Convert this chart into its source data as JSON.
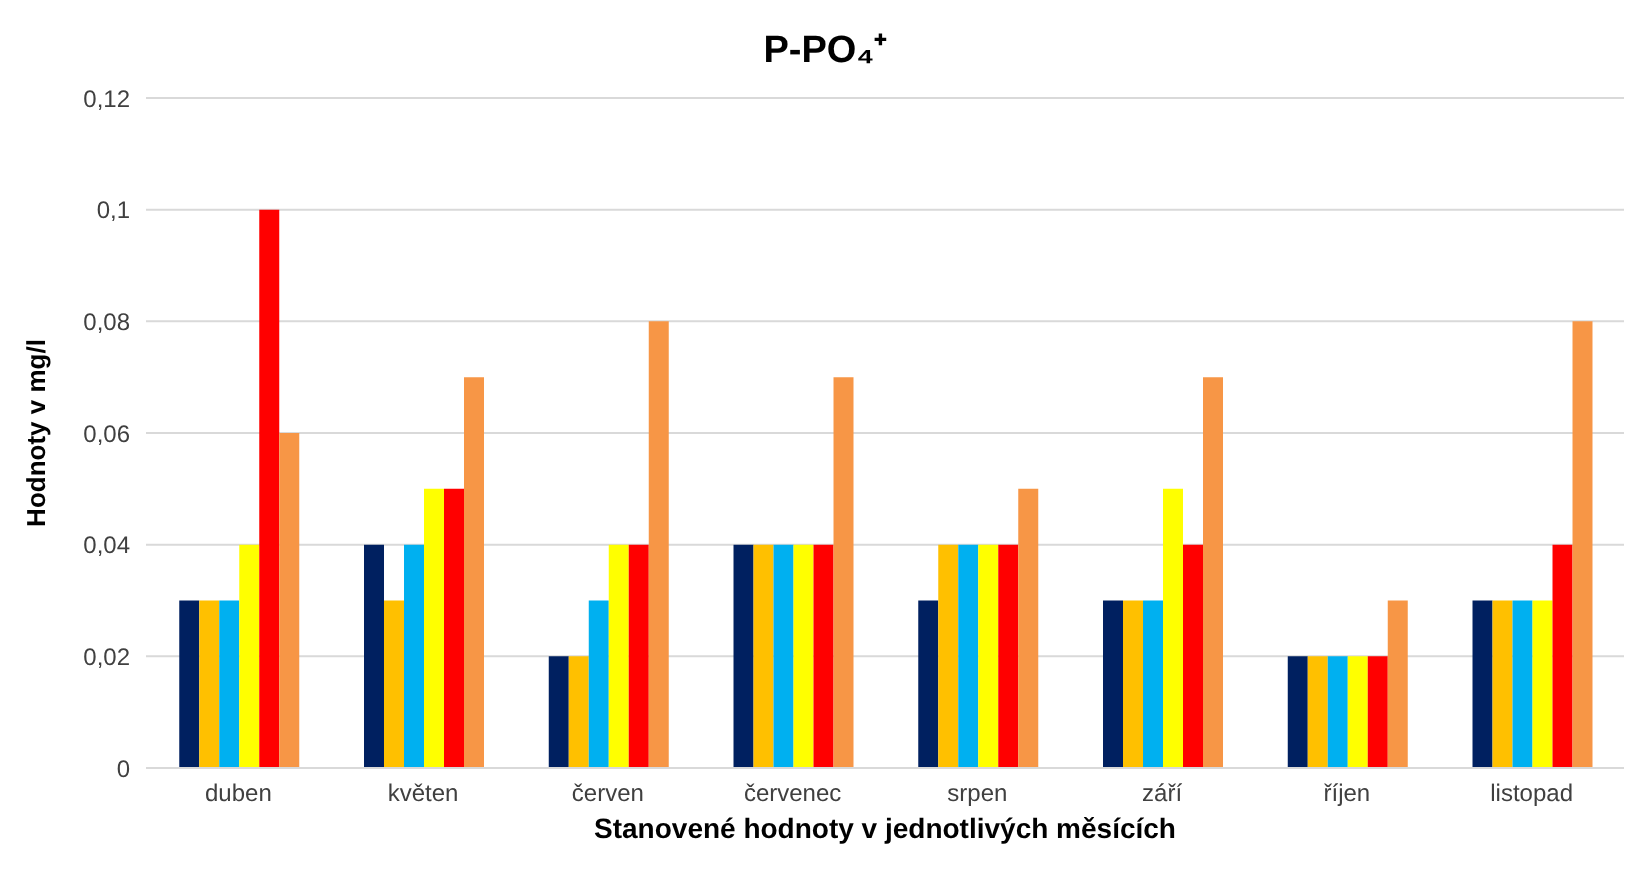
{
  "chart_data": {
    "type": "bar",
    "title": "P-PO₄⁺",
    "xlabel": "Stanovené hodnoty v jednotlivých měsících",
    "ylabel": "Hodnoty v mg/l",
    "categories": [
      "duben",
      "květen",
      "červen",
      "červenec",
      "srpen",
      "září",
      "říjen",
      "listopad"
    ],
    "series": [
      {
        "color": "#002060",
        "values": [
          0.03,
          0.04,
          0.02,
          0.04,
          0.03,
          0.03,
          0.02,
          0.03
        ]
      },
      {
        "color": "#ffc000",
        "values": [
          0.03,
          0.03,
          0.02,
          0.04,
          0.04,
          0.03,
          0.02,
          0.03
        ]
      },
      {
        "color": "#00b0f0",
        "values": [
          0.03,
          0.04,
          0.03,
          0.04,
          0.04,
          0.03,
          0.02,
          0.03
        ]
      },
      {
        "color": "#ffff00",
        "values": [
          0.04,
          0.05,
          0.04,
          0.04,
          0.04,
          0.05,
          0.02,
          0.03
        ]
      },
      {
        "color": "#ff0000",
        "values": [
          0.1,
          0.05,
          0.04,
          0.04,
          0.04,
          0.04,
          0.02,
          0.04
        ]
      },
      {
        "color": "#f79646",
        "values": [
          0.06,
          0.07,
          0.08,
          0.07,
          0.05,
          0.07,
          0.03,
          0.08
        ]
      }
    ],
    "ylim": [
      0,
      0.12
    ],
    "yticks": [
      0,
      {
        "value": 0.02,
        "label": "0,02"
      },
      {
        "value": 0.04,
        "label": "0,04"
      },
      {
        "value": 0.06,
        "label": "0,06"
      },
      {
        "value": 0.08,
        "label": "0,08"
      },
      {
        "value": 0.1,
        "label": "0,1"
      },
      {
        "value": 0.12,
        "label": "0,12"
      }
    ],
    "grid": "y"
  }
}
